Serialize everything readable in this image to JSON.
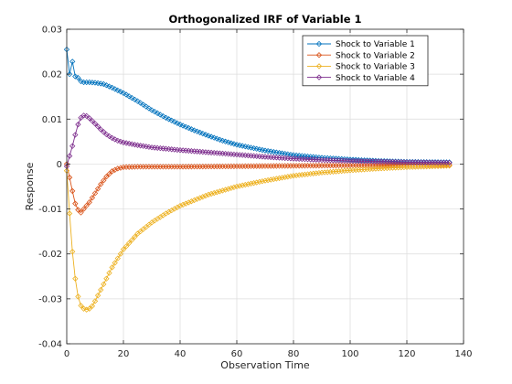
{
  "chart_data": {
    "type": "line",
    "title": "Orthogonalized IRF of Variable 1",
    "xlabel": "Observation Time",
    "ylabel": "Response",
    "xlim": [
      0,
      140
    ],
    "ylim": [
      -0.04,
      0.03
    ],
    "xticks": [
      0,
      20,
      40,
      60,
      80,
      100,
      120,
      140
    ],
    "xtick_labels": [
      "0",
      "20",
      "40",
      "60",
      "80",
      "100",
      "120",
      "140"
    ],
    "yticks": [
      -0.04,
      -0.03,
      -0.02,
      -0.01,
      0,
      0.01,
      0.02,
      0.03
    ],
    "ytick_labels": [
      "-0.04",
      "-0.03",
      "-0.02",
      "-0.01",
      "0",
      "0.01",
      "0.02",
      "0.03"
    ],
    "grid": true,
    "legend_position": "top-right",
    "marker": "diamond",
    "x_range": [
      0,
      135
    ],
    "series": [
      {
        "name": "Shock to Variable 1",
        "color": "#0072BD",
        "keypoints": [
          [
            0,
            0.0255
          ],
          [
            1,
            0.02
          ],
          [
            2,
            0.0228
          ],
          [
            3,
            0.0195
          ],
          [
            4,
            0.0192
          ],
          [
            5,
            0.0184
          ],
          [
            6,
            0.0182
          ],
          [
            8,
            0.0182
          ],
          [
            10,
            0.0181
          ],
          [
            13,
            0.0178
          ],
          [
            16,
            0.017
          ],
          [
            20,
            0.0158
          ],
          [
            25,
            0.014
          ],
          [
            30,
            0.012
          ],
          [
            35,
            0.0103
          ],
          [
            40,
            0.0088
          ],
          [
            45,
            0.0075
          ],
          [
            50,
            0.0063
          ],
          [
            55,
            0.0052
          ],
          [
            60,
            0.0043
          ],
          [
            70,
            0.003
          ],
          [
            80,
            0.002
          ],
          [
            90,
            0.0014
          ],
          [
            100,
            0.001
          ],
          [
            110,
            0.0007
          ],
          [
            120,
            0.0005
          ],
          [
            135,
            0.0004
          ]
        ]
      },
      {
        "name": "Shock to Variable 2",
        "color": "#D95319",
        "keypoints": [
          [
            0,
            0.0
          ],
          [
            1,
            -0.003
          ],
          [
            2,
            -0.006
          ],
          [
            3,
            -0.0088
          ],
          [
            4,
            -0.0102
          ],
          [
            5,
            -0.0108
          ],
          [
            6,
            -0.01
          ],
          [
            8,
            -0.0085
          ],
          [
            10,
            -0.0065
          ],
          [
            12,
            -0.0045
          ],
          [
            14,
            -0.0028
          ],
          [
            16,
            -0.0016
          ],
          [
            18,
            -0.001
          ],
          [
            20,
            -0.0007
          ],
          [
            25,
            -0.0006
          ],
          [
            40,
            -0.0006
          ],
          [
            60,
            -0.0005
          ],
          [
            80,
            -0.0004
          ],
          [
            100,
            -0.0003
          ],
          [
            120,
            -0.0002
          ],
          [
            135,
            -0.0002
          ]
        ]
      },
      {
        "name": "Shock to Variable 3",
        "color": "#EDB120",
        "keypoints": [
          [
            0,
            -0.0015
          ],
          [
            1,
            -0.011
          ],
          [
            2,
            -0.0195
          ],
          [
            3,
            -0.0255
          ],
          [
            4,
            -0.0295
          ],
          [
            5,
            -0.0315
          ],
          [
            6,
            -0.0322
          ],
          [
            7,
            -0.0324
          ],
          [
            8,
            -0.0322
          ],
          [
            9,
            -0.0316
          ],
          [
            10,
            -0.0305
          ],
          [
            12,
            -0.028
          ],
          [
            14,
            -0.0255
          ],
          [
            16,
            -0.023
          ],
          [
            18,
            -0.021
          ],
          [
            20,
            -0.019
          ],
          [
            25,
            -0.0155
          ],
          [
            30,
            -0.013
          ],
          [
            35,
            -0.011
          ],
          [
            40,
            -0.0093
          ],
          [
            50,
            -0.0068
          ],
          [
            60,
            -0.005
          ],
          [
            70,
            -0.0037
          ],
          [
            80,
            -0.0026
          ],
          [
            90,
            -0.0019
          ],
          [
            100,
            -0.0014
          ],
          [
            110,
            -0.001
          ],
          [
            120,
            -0.0007
          ],
          [
            135,
            -0.0004
          ]
        ]
      },
      {
        "name": "Shock to Variable 4",
        "color": "#7E2F8E",
        "keypoints": [
          [
            0,
            -0.0005
          ],
          [
            1,
            0.0018
          ],
          [
            2,
            0.004
          ],
          [
            3,
            0.0065
          ],
          [
            4,
            0.0088
          ],
          [
            5,
            0.0103
          ],
          [
            6,
            0.0108
          ],
          [
            7,
            0.0107
          ],
          [
            8,
            0.0102
          ],
          [
            10,
            0.009
          ],
          [
            12,
            0.0077
          ],
          [
            14,
            0.0066
          ],
          [
            16,
            0.0058
          ],
          [
            18,
            0.0052
          ],
          [
            20,
            0.0048
          ],
          [
            25,
            0.0042
          ],
          [
            30,
            0.0037
          ],
          [
            40,
            0.0031
          ],
          [
            50,
            0.0026
          ],
          [
            60,
            0.0021
          ],
          [
            70,
            0.0016
          ],
          [
            80,
            0.0012
          ],
          [
            90,
            0.0009
          ],
          [
            100,
            0.0007
          ],
          [
            120,
            0.0004
          ],
          [
            135,
            0.0003
          ]
        ]
      }
    ]
  }
}
